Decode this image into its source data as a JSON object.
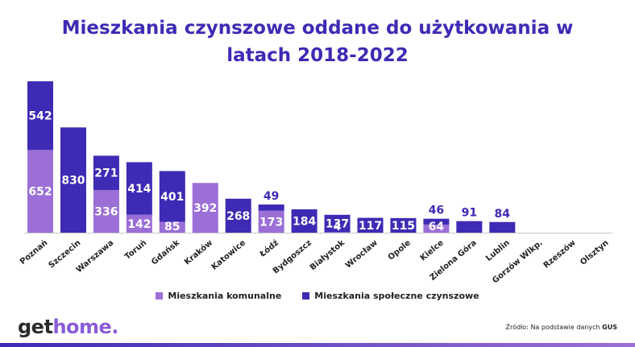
{
  "title_line1": "Mieszkania czynszowe oddane do użytkowania w",
  "title_line2": "latach 2018-2022",
  "legend": {
    "komunalne": "Mieszkania komunalne",
    "spoleczne": "Mieszkania społeczne czynszowe"
  },
  "colors": {
    "komunalne": "#9b6fd6",
    "spoleczne": "#3d2bb5",
    "title": "#3d2bb5"
  },
  "logo": {
    "part1": "get",
    "part2": "home",
    "part3": "."
  },
  "source": {
    "prefix": "Źródło: Na podstawie danych",
    "org": "GUS"
  },
  "chart_data": {
    "type": "bar",
    "stacked": true,
    "categories": [
      "Poznań",
      "Szczecin",
      "Warszawa",
      "Toruń",
      "Gdańsk",
      "Kraków",
      "Katowice",
      "Łódź",
      "Bydgoszcz",
      "Białystok",
      "Wrocław",
      "Opole",
      "Kielce",
      "Zielona Góra",
      "Lublin",
      "Gorzów Wlkp.",
      "Rzeszów",
      "Olsztyn"
    ],
    "series": [
      {
        "name": "Mieszkania komunalne",
        "values": [
          652,
          0,
          336,
          142,
          85,
          392,
          0,
          173,
          0,
          4,
          0,
          0,
          64,
          0,
          0,
          0,
          0,
          0
        ]
      },
      {
        "name": "Mieszkania społeczne czynszowe",
        "values": [
          542,
          830,
          271,
          414,
          401,
          0,
          268,
          49,
          184,
          137,
          117,
          115,
          46,
          91,
          84,
          0,
          0,
          0
        ]
      }
    ],
    "ylim": [
      0,
      1200
    ],
    "grid": false,
    "legend_position": "bottom"
  }
}
